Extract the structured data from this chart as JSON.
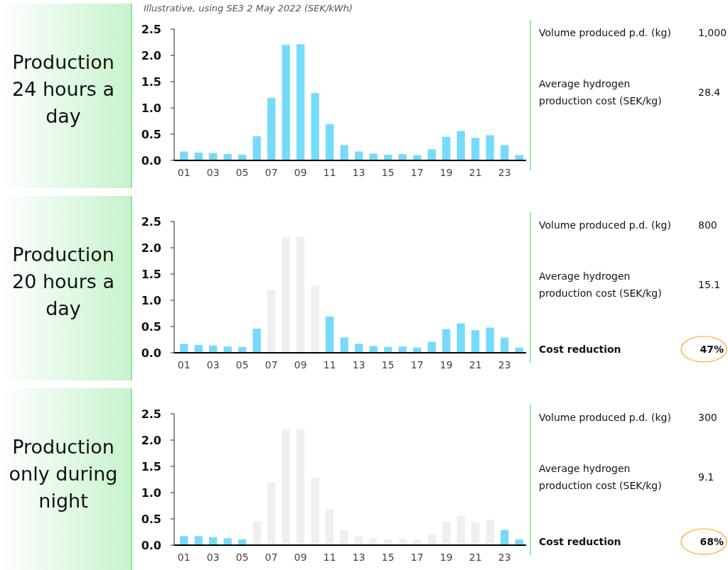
{
  "chart_data": [
    {
      "type": "bar",
      "title": "Production 24 hours a day",
      "subtitle": "Illustrative, using SE3 2 May 2022 (SEK/kWh)",
      "categories": [
        "01",
        null,
        "03",
        null,
        "05",
        null,
        "07",
        null,
        "09",
        null,
        "11",
        null,
        "13",
        null,
        "15",
        null,
        "17",
        null,
        "19",
        null,
        "21",
        null,
        "23",
        null
      ],
      "values": [
        0.17,
        0.15,
        0.14,
        0.12,
        0.11,
        0.46,
        1.19,
        2.2,
        2.21,
        1.28,
        0.69,
        0.29,
        0.17,
        0.13,
        0.11,
        0.12,
        0.1,
        0.21,
        0.45,
        0.56,
        0.43,
        0.48,
        0.29,
        0.1
      ],
      "colors": [
        "#75dbfa",
        "#75dbfa",
        "#75dbfa",
        "#75dbfa",
        "#75dbfa",
        "#75dbfa",
        "#75dbfa",
        "#75dbfa",
        "#75dbfa",
        "#75dbfa",
        "#75dbfa",
        "#75dbfa",
        "#75dbfa",
        "#75dbfa",
        "#75dbfa",
        "#75dbfa",
        "#75dbfa",
        "#75dbfa",
        "#75dbfa",
        "#75dbfa",
        "#75dbfa",
        "#75dbfa",
        "#75dbfa",
        "#75dbfa"
      ],
      "ylim": [
        0,
        2.5
      ],
      "yticks": [
        {
          "value": 0,
          "label": "0.0"
        },
        0.5,
        {
          "value": 1,
          "label": "1.0"
        },
        1.5,
        {
          "value": 2,
          "label": "2.0"
        },
        2.5
      ],
      "annotations": [
        "Volume produced p.d. (kg)",
        "1,000",
        "Average hydrogen production cost (SEK/kg)",
        "28.4"
      ]
    },
    {
      "type": "bar",
      "title": "Production 20 hours a day",
      "categories": [
        "01",
        null,
        "03",
        null,
        "05",
        null,
        "07",
        null,
        "09",
        null,
        "11",
        null,
        "13",
        null,
        "15",
        null,
        "17",
        null,
        "19",
        null,
        "21",
        null,
        "23",
        null
      ],
      "values": [
        0.17,
        0.15,
        0.14,
        0.12,
        0.11,
        0.46,
        1.19,
        2.2,
        2.21,
        1.28,
        0.69,
        0.29,
        0.17,
        0.13,
        0.11,
        0.12,
        0.1,
        0.21,
        0.45,
        0.56,
        0.43,
        0.48,
        0.29,
        0.1
      ],
      "colors": [
        "#75dbfa",
        "#75dbfa",
        "#75dbfa",
        "#75dbfa",
        "#75dbfa",
        "#75dbfa",
        "#efefef",
        "#efefef",
        "#efefef",
        "#efefef",
        "#75dbfa",
        "#75dbfa",
        "#75dbfa",
        "#75dbfa",
        "#75dbfa",
        "#75dbfa",
        "#75dbfa",
        "#75dbfa",
        "#75dbfa",
        "#75dbfa",
        "#75dbfa",
        "#75dbfa",
        "#75dbfa",
        "#75dbfa"
      ],
      "ylim": [
        0,
        2.5
      ],
      "yticks": [
        {
          "value": 0,
          "label": "0.0"
        },
        0.5,
        {
          "value": 1,
          "label": "1.0"
        },
        1.5,
        {
          "value": 2,
          "label": "2.0"
        },
        2.5
      ],
      "annotations": [
        "Volume produced p.d. (kg)",
        "800",
        "Average hydrogen production cost (SEK/kg)",
        "15.1",
        "Cost reduction",
        "47%"
      ]
    },
    {
      "type": "bar",
      "title": "Production only during night",
      "categories": [
        "01",
        null,
        "03",
        null,
        "05",
        null,
        "07",
        null,
        "09",
        null,
        "11",
        null,
        "13",
        null,
        "15",
        null,
        "17",
        null,
        "19",
        null,
        "21",
        null,
        "23",
        null
      ],
      "values": [
        0.17,
        0.17,
        0.15,
        0.13,
        0.11,
        0.46,
        1.19,
        2.2,
        2.21,
        1.28,
        0.69,
        0.29,
        0.17,
        0.13,
        0.11,
        0.12,
        0.1,
        0.21,
        0.45,
        0.56,
        0.43,
        0.48,
        0.29,
        0.11
      ],
      "colors": [
        "#75dbfa",
        "#75dbfa",
        "#75dbfa",
        "#75dbfa",
        "#75dbfa",
        "#efefef",
        "#efefef",
        "#efefef",
        "#efefef",
        "#efefef",
        "#efefef",
        "#efefef",
        "#efefef",
        "#efefef",
        "#efefef",
        "#efefef",
        "#efefef",
        "#efefef",
        "#efefef",
        "#efefef",
        "#efefef",
        "#efefef",
        "#75dbfa",
        "#75dbfa"
      ],
      "ylim": [
        0,
        2.5
      ],
      "yticks": [
        {
          "value": 0,
          "label": "0.0"
        },
        0.5,
        {
          "value": 1,
          "label": "1.0"
        },
        1.5,
        {
          "value": 2,
          "label": "2.0"
        },
        2.5
      ],
      "annotations": [
        "Volume produced p.d. (kg)",
        "300",
        "Average hydrogen production cost (SEK/kg)",
        "9.1",
        "Cost reduction",
        "68%"
      ]
    }
  ]
}
